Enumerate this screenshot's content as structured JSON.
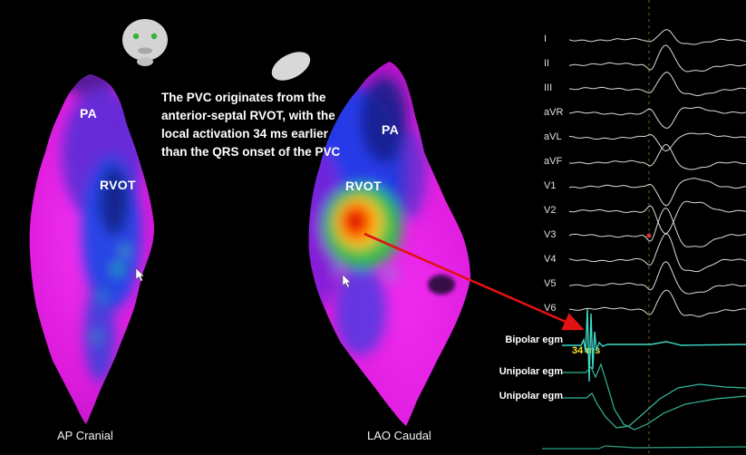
{
  "annotation": {
    "text": "The PVC originates from the\nanterior-septal RVOT, with the\nlocal activation 34 ms earlier\nthan the QRS onset of the PVC"
  },
  "maps": {
    "left": {
      "pa": "PA",
      "rvot": "RVOT",
      "caption": "AP Cranial"
    },
    "right": {
      "pa": "PA",
      "rvot": "RVOT",
      "caption": "LAO Caudal"
    }
  },
  "ecg": {
    "leads": [
      {
        "label": "I",
        "amp": 12,
        "dir": 1
      },
      {
        "label": "II",
        "amp": 22,
        "dir": 1
      },
      {
        "label": "III",
        "amp": 18,
        "dir": 1
      },
      {
        "label": "aVR",
        "amp": 18,
        "dir": -1
      },
      {
        "label": "aVL",
        "amp": 14,
        "dir": -1
      },
      {
        "label": "aVF",
        "amp": 20,
        "dir": 1
      },
      {
        "label": "V1",
        "amp": 20,
        "dir": -1
      },
      {
        "label": "V2",
        "amp": 26,
        "dir": -1
      },
      {
        "label": "V3",
        "amp": 30,
        "dir": 1
      },
      {
        "label": "V4",
        "amp": 30,
        "dir": 1
      },
      {
        "label": "V5",
        "amp": 26,
        "dir": 1
      },
      {
        "label": "V6",
        "amp": 22,
        "dir": 1
      }
    ],
    "egm_labels": [
      "Bipolar egm",
      "Unipolar egm",
      "Unipolar egm"
    ],
    "measurement": "34 ms"
  },
  "icons": {
    "head": "patient-orientation-head-icon",
    "body": "patient-orientation-body-icon",
    "cursor": "mouse-cursor-icon"
  },
  "colors": {
    "arrow": "#e11212",
    "teal": "#3fd9c6",
    "egm": "#35b89b",
    "yellow": "#ffe033",
    "dashed": "#9c6520",
    "trace": "#d8ded8",
    "label": "#e0e0e0",
    "map_magenta": "#dd1bdd",
    "activation_earliest": "#ff2800",
    "activation_latest": "#dd1bdd"
  }
}
